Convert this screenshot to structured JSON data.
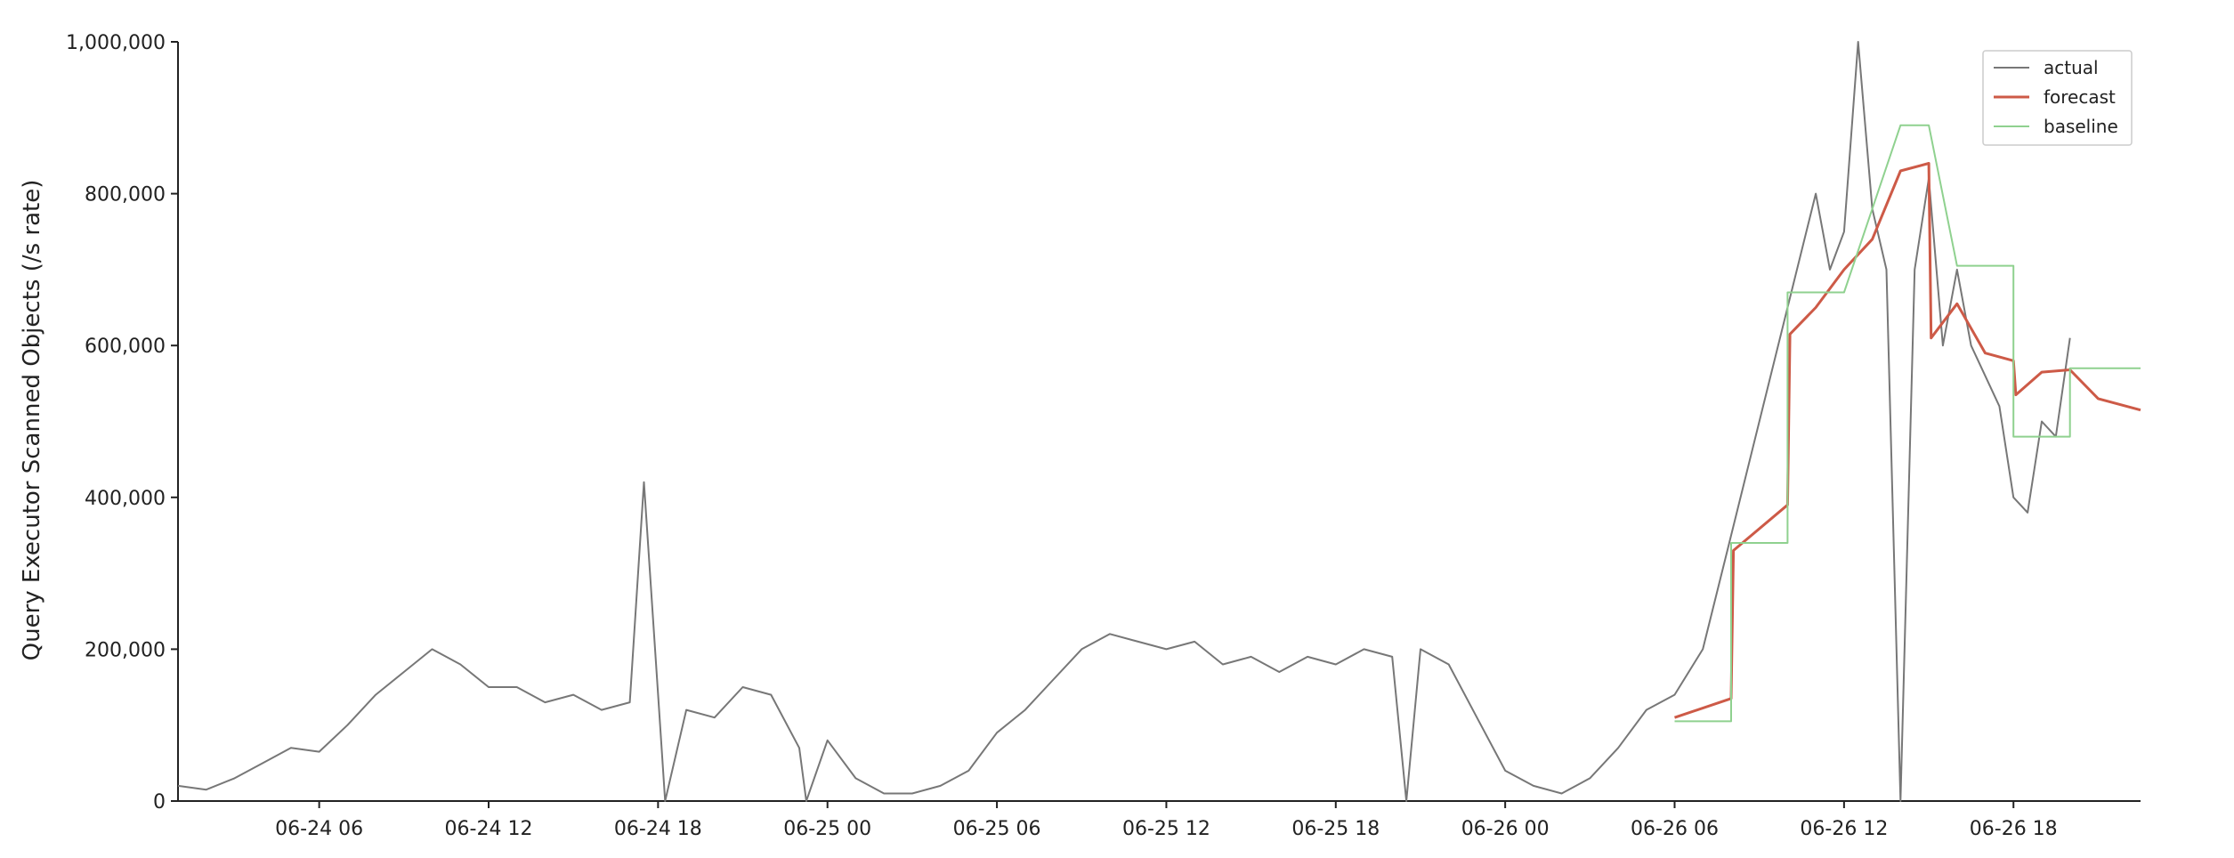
{
  "chart_data": {
    "type": "line",
    "ylabel": "Query Executor Scanned Objects (/s rate)",
    "xlabel": "",
    "x_range": [
      "06-24 01:00",
      "06-26 22:30"
    ],
    "x_tick_labels": [
      "06-24 06",
      "06-24 12",
      "06-24 18",
      "06-25 00",
      "06-25 06",
      "06-25 12",
      "06-25 18",
      "06-26 00",
      "06-26 06",
      "06-26 12",
      "06-26 18"
    ],
    "ylim": [
      0,
      1000000
    ],
    "y_tick_labels": [
      "0",
      "200,000",
      "400,000",
      "600,000",
      "800,000",
      "1,000,000"
    ],
    "grid": false,
    "legend_position": "top-right",
    "series": [
      {
        "name": "actual",
        "color": "#777777",
        "points": [
          [
            "06-24 01:00",
            20000
          ],
          [
            "06-24 02:00",
            15000
          ],
          [
            "06-24 03:00",
            30000
          ],
          [
            "06-24 04:00",
            50000
          ],
          [
            "06-24 05:00",
            70000
          ],
          [
            "06-24 06:00",
            65000
          ],
          [
            "06-24 07:00",
            100000
          ],
          [
            "06-24 08:00",
            140000
          ],
          [
            "06-24 09:00",
            170000
          ],
          [
            "06-24 10:00",
            200000
          ],
          [
            "06-24 11:00",
            180000
          ],
          [
            "06-24 12:00",
            150000
          ],
          [
            "06-24 13:00",
            150000
          ],
          [
            "06-24 14:00",
            130000
          ],
          [
            "06-24 15:00",
            140000
          ],
          [
            "06-24 16:00",
            120000
          ],
          [
            "06-24 17:00",
            130000
          ],
          [
            "06-24 17:30",
            420000
          ],
          [
            "06-24 18:00",
            140000
          ],
          [
            "06-24 18:15",
            0
          ],
          [
            "06-24 19:00",
            120000
          ],
          [
            "06-24 20:00",
            110000
          ],
          [
            "06-24 21:00",
            150000
          ],
          [
            "06-24 22:00",
            140000
          ],
          [
            "06-24 23:00",
            70000
          ],
          [
            "06-24 23:15",
            0
          ],
          [
            "06-25 00:00",
            80000
          ],
          [
            "06-25 01:00",
            30000
          ],
          [
            "06-25 02:00",
            10000
          ],
          [
            "06-25 03:00",
            10000
          ],
          [
            "06-25 04:00",
            20000
          ],
          [
            "06-25 05:00",
            40000
          ],
          [
            "06-25 06:00",
            90000
          ],
          [
            "06-25 07:00",
            120000
          ],
          [
            "06-25 08:00",
            160000
          ],
          [
            "06-25 09:00",
            200000
          ],
          [
            "06-25 10:00",
            220000
          ],
          [
            "06-25 11:00",
            210000
          ],
          [
            "06-25 12:00",
            200000
          ],
          [
            "06-25 13:00",
            210000
          ],
          [
            "06-25 14:00",
            180000
          ],
          [
            "06-25 15:00",
            190000
          ],
          [
            "06-25 16:00",
            170000
          ],
          [
            "06-25 17:00",
            190000
          ],
          [
            "06-25 18:00",
            180000
          ],
          [
            "06-25 19:00",
            200000
          ],
          [
            "06-25 20:00",
            190000
          ],
          [
            "06-25 20:30",
            0
          ],
          [
            "06-25 21:00",
            200000
          ],
          [
            "06-25 22:00",
            180000
          ],
          [
            "06-25 23:00",
            110000
          ],
          [
            "06-26 00:00",
            40000
          ],
          [
            "06-26 01:00",
            20000
          ],
          [
            "06-26 02:00",
            10000
          ],
          [
            "06-26 03:00",
            30000
          ],
          [
            "06-26 04:00",
            70000
          ],
          [
            "06-26 05:00",
            120000
          ],
          [
            "06-26 06:00",
            140000
          ],
          [
            "06-26 07:00",
            200000
          ],
          [
            "06-26 08:00",
            350000
          ],
          [
            "06-26 09:00",
            500000
          ],
          [
            "06-26 10:00",
            650000
          ],
          [
            "06-26 11:00",
            800000
          ],
          [
            "06-26 11:30",
            700000
          ],
          [
            "06-26 12:00",
            750000
          ],
          [
            "06-26 12:30",
            1000000
          ],
          [
            "06-26 13:00",
            780000
          ],
          [
            "06-26 13:30",
            700000
          ],
          [
            "06-26 14:00",
            0
          ],
          [
            "06-26 14:30",
            700000
          ],
          [
            "06-26 15:00",
            820000
          ],
          [
            "06-26 15:30",
            600000
          ],
          [
            "06-26 16:00",
            700000
          ],
          [
            "06-26 16:30",
            600000
          ],
          [
            "06-26 17:00",
            560000
          ],
          [
            "06-26 17:30",
            520000
          ],
          [
            "06-26 18:00",
            400000
          ],
          [
            "06-26 18:30",
            380000
          ],
          [
            "06-26 19:00",
            500000
          ],
          [
            "06-26 19:30",
            480000
          ],
          [
            "06-26 20:00",
            610000
          ]
        ]
      },
      {
        "name": "forecast",
        "color": "#cd5a47",
        "points": [
          [
            "06-26 06:00",
            110000
          ],
          [
            "06-26 08:00",
            135000
          ],
          [
            "06-26 08:05",
            330000
          ],
          [
            "06-26 10:00",
            390000
          ],
          [
            "06-26 10:05",
            615000
          ],
          [
            "06-26 11:00",
            650000
          ],
          [
            "06-26 12:00",
            700000
          ],
          [
            "06-26 13:00",
            740000
          ],
          [
            "06-26 14:00",
            830000
          ],
          [
            "06-26 15:00",
            840000
          ],
          [
            "06-26 15:05",
            610000
          ],
          [
            "06-26 16:00",
            655000
          ],
          [
            "06-26 17:00",
            590000
          ],
          [
            "06-26 18:00",
            580000
          ],
          [
            "06-26 18:05",
            535000
          ],
          [
            "06-26 19:00",
            565000
          ],
          [
            "06-26 20:00",
            568000
          ],
          [
            "06-26 21:00",
            530000
          ],
          [
            "06-26 22:30",
            515000
          ]
        ]
      },
      {
        "name": "baseline",
        "color": "#8fd18f",
        "points": [
          [
            "06-26 06:00",
            105000
          ],
          [
            "06-26 08:00",
            105000
          ],
          [
            "06-26 08:00",
            340000
          ],
          [
            "06-26 10:00",
            340000
          ],
          [
            "06-26 10:00",
            670000
          ],
          [
            "06-26 12:00",
            670000
          ],
          [
            "06-26 14:00",
            890000
          ],
          [
            "06-26 15:00",
            890000
          ],
          [
            "06-26 15:00",
            890000
          ],
          [
            "06-26 16:00",
            705000
          ],
          [
            "06-26 18:00",
            705000
          ],
          [
            "06-26 18:00",
            480000
          ],
          [
            "06-26 20:00",
            480000
          ],
          [
            "06-26 20:00",
            570000
          ],
          [
            "06-26 22:30",
            570000
          ]
        ]
      }
    ]
  }
}
